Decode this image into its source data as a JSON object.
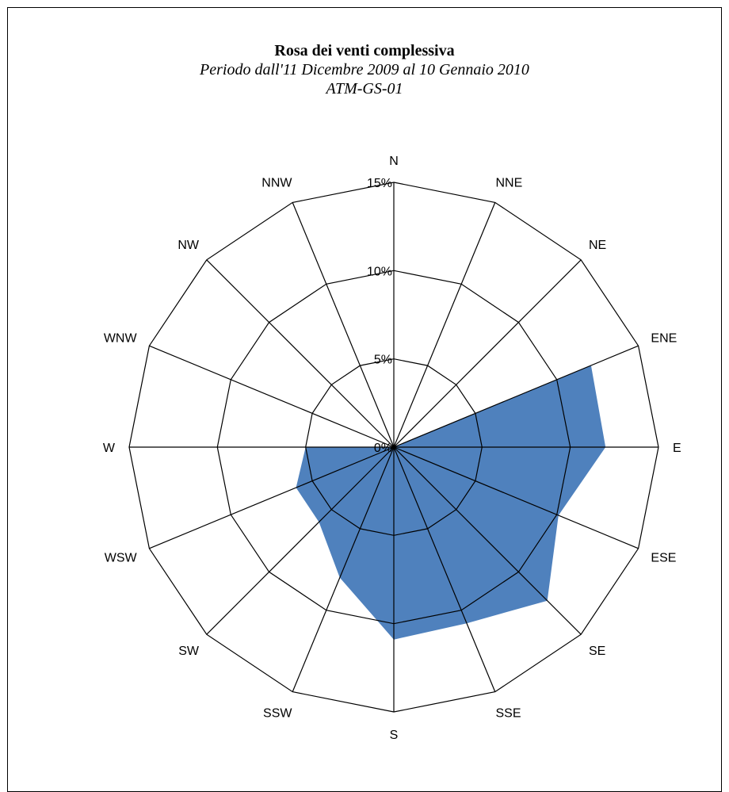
{
  "chart_data": {
    "type": "radar",
    "title": "Rosa dei venti complessiva",
    "subtitle": "Periodo dall'11 Dicembre 2009 al 10 Gennaio 2010",
    "station": "ATM-GS-01",
    "directions": [
      "N",
      "NNE",
      "NE",
      "ENE",
      "E",
      "ESE",
      "SE",
      "SSE",
      "S",
      "SSW",
      "SW",
      "WSW",
      "W",
      "WNW",
      "NW",
      "NNW"
    ],
    "values": [
      0,
      0,
      0,
      12.1,
      12.0,
      10.1,
      12.3,
      10.8,
      10.9,
      8.0,
      6.0,
      6.0,
      5.0,
      0,
      0,
      0
    ],
    "rings": [
      0,
      5,
      10,
      15
    ],
    "ring_labels": [
      "0%",
      "5%",
      "10%",
      "15%"
    ],
    "max": 15,
    "fill_color": "#4f81bd",
    "grid_color": "#000000",
    "legend": "none"
  }
}
